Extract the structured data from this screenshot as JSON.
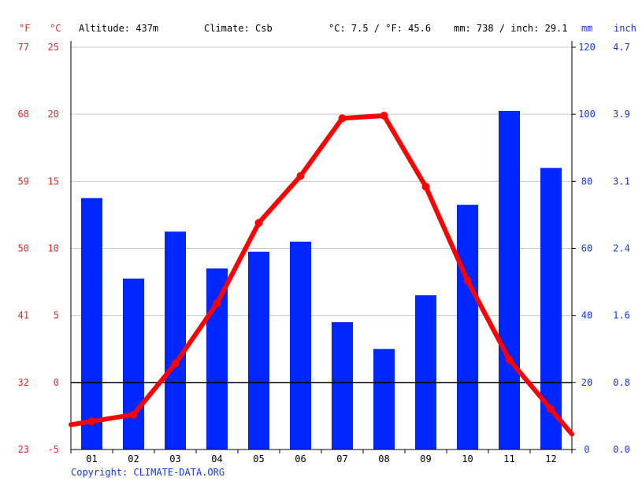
{
  "header": {
    "unit_f": "°F",
    "unit_c": "°C",
    "altitude": "Altitude: 437m",
    "climate": "Climate: Csb",
    "temp_avg": "°C: 7.5 / °F: 45.6",
    "precip_total": "mm: 738 / inch: 29.1",
    "unit_mm": "mm",
    "unit_inch": "inch"
  },
  "copyright": "Copyright: CLIMATE-DATA.ORG",
  "colors": {
    "temperature": "#ff0000",
    "precipitation": "#0026ff",
    "axis_left": "#e8271e",
    "axis_right": "#1438f2",
    "grid": "#c8c8c8"
  },
  "chart_data": {
    "type": "bar",
    "categories": [
      "01",
      "02",
      "03",
      "04",
      "05",
      "06",
      "07",
      "08",
      "09",
      "10",
      "11",
      "12"
    ],
    "series": [
      {
        "type": "bar",
        "axis": "right",
        "values": [
          75,
          51,
          65,
          54,
          59,
          62,
          38,
          30,
          46,
          73,
          101,
          84
        ]
      },
      {
        "type": "line",
        "axis": "left",
        "values": [
          -2.9,
          -2.4,
          1.4,
          5.9,
          11.9,
          15.4,
          19.7,
          19.9,
          14.6,
          7.6,
          1.7,
          -2.0
        ]
      }
    ],
    "temp_axis": {
      "celsius_ticks": [
        25,
        20,
        15,
        10,
        5,
        0,
        -5
      ],
      "fahrenheit_ticks": [
        77,
        68,
        59,
        50,
        41,
        32,
        23
      ],
      "ylim": [
        -5,
        25
      ]
    },
    "precip_axis": {
      "mm_ticks": [
        120,
        100,
        80,
        60,
        40,
        20,
        0
      ],
      "inch_ticks": [
        "4.7",
        "3.9",
        "3.1",
        "2.4",
        "1.6",
        "0.8",
        "0.0"
      ],
      "ylim": [
        0,
        120
      ]
    },
    "grid": true
  }
}
